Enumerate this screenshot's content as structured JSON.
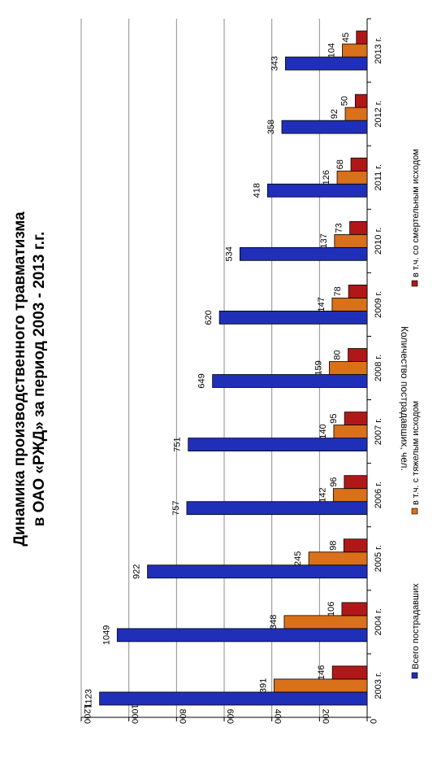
{
  "chart_data": {
    "type": "bar",
    "orientation": "rotated-90-ccw",
    "title_lines": [
      "Динамика производственного травматизма",
      "в ОАО «РЖД» за период   2003 - 2013 г.г."
    ],
    "ylabel": "Количество пострадавших, чел.",
    "xlabel": "",
    "ylim": [
      0,
      1200
    ],
    "yticks": [
      0,
      200,
      400,
      600,
      800,
      1000,
      1200
    ],
    "grid": true,
    "legend_position": "bottom",
    "categories": [
      "2003 г.",
      "2004 г.",
      "2005 г.",
      "2006 г.",
      "2007 г.",
      "2008 г.",
      "2009 г.",
      "2010 г.",
      "2011 г.",
      "2012 г.",
      "2013 г."
    ],
    "series": [
      {
        "name": "Всего пострадавших",
        "color": "#1f2fb8",
        "values": [
          1123,
          1049,
          922,
          757,
          751,
          649,
          620,
          534,
          418,
          358,
          343
        ]
      },
      {
        "name": "в т.ч. с тяжелым исходом",
        "color": "#d9701a",
        "values": [
          391,
          348,
          245,
          142,
          140,
          159,
          147,
          137,
          126,
          92,
          104
        ]
      },
      {
        "name": "в т.ч. со смертельным исходом",
        "color": "#b01818",
        "values": [
          146,
          106,
          98,
          96,
          95,
          80,
          78,
          73,
          68,
          50,
          45
        ]
      }
    ]
  }
}
